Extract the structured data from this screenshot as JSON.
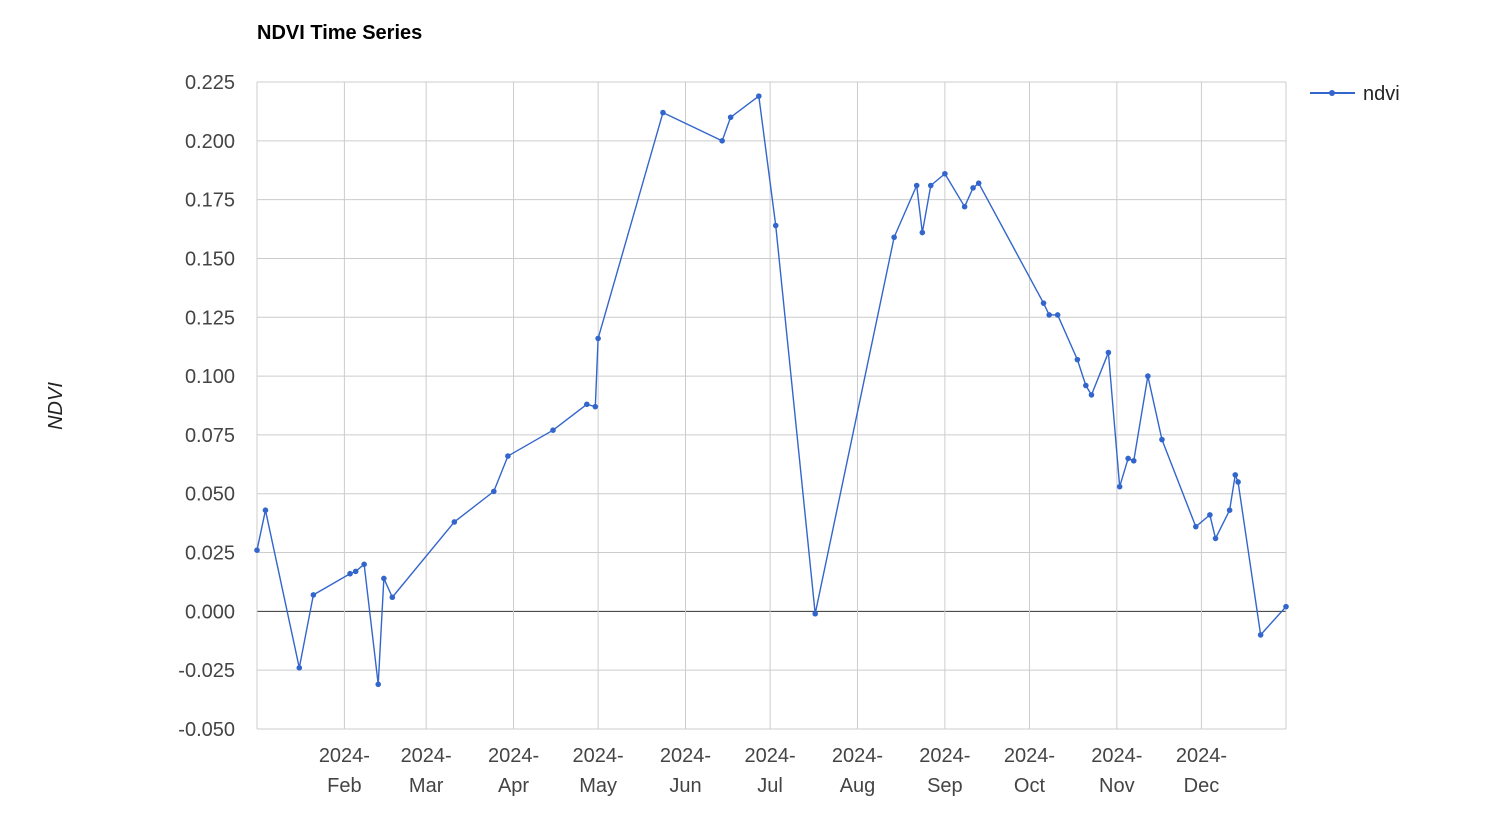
{
  "chart_data": {
    "type": "line",
    "title": "NDVI Time Series",
    "xlabel": "",
    "ylabel": "NDVI",
    "ylim": [
      -0.05,
      0.225
    ],
    "yticks": [
      "0.225",
      "0.200",
      "0.175",
      "0.150",
      "0.125",
      "0.100",
      "0.075",
      "0.050",
      "0.025",
      "0.000",
      "-0.025",
      "-0.050"
    ],
    "xticks": [
      {
        "date": "2024-02-01",
        "label1": "2024-",
        "label2": "Feb"
      },
      {
        "date": "2024-03-01",
        "label1": "2024-",
        "label2": "Mar"
      },
      {
        "date": "2024-04-01",
        "label1": "2024-",
        "label2": "Apr"
      },
      {
        "date": "2024-05-01",
        "label1": "2024-",
        "label2": "May"
      },
      {
        "date": "2024-06-01",
        "label1": "2024-",
        "label2": "Jun"
      },
      {
        "date": "2024-07-01",
        "label1": "2024-",
        "label2": "Jul"
      },
      {
        "date": "2024-08-01",
        "label1": "2024-",
        "label2": "Aug"
      },
      {
        "date": "2024-09-01",
        "label1": "2024-",
        "label2": "Sep"
      },
      {
        "date": "2024-10-01",
        "label1": "2024-",
        "label2": "Oct"
      },
      {
        "date": "2024-11-01",
        "label1": "2024-",
        "label2": "Nov"
      },
      {
        "date": "2024-12-01",
        "label1": "2024-",
        "label2": "Dec"
      }
    ],
    "xlim": [
      "2024-01-01",
      "2024-12-31"
    ],
    "grid": true,
    "legend_position": "top-right",
    "series": [
      {
        "name": "ndvi",
        "color": "#3366cc",
        "points": [
          {
            "x": "2024-01-01",
            "y": 0.026
          },
          {
            "x": "2024-01-04",
            "y": 0.043
          },
          {
            "x": "2024-01-16",
            "y": -0.024
          },
          {
            "x": "2024-01-21",
            "y": 0.007
          },
          {
            "x": "2024-02-03",
            "y": 0.016
          },
          {
            "x": "2024-02-05",
            "y": 0.017
          },
          {
            "x": "2024-02-08",
            "y": 0.02
          },
          {
            "x": "2024-02-13",
            "y": -0.031
          },
          {
            "x": "2024-02-15",
            "y": 0.014
          },
          {
            "x": "2024-02-18",
            "y": 0.006
          },
          {
            "x": "2024-03-11",
            "y": 0.038
          },
          {
            "x": "2024-03-25",
            "y": 0.051
          },
          {
            "x": "2024-03-30",
            "y": 0.066
          },
          {
            "x": "2024-04-15",
            "y": 0.077
          },
          {
            "x": "2024-04-27",
            "y": 0.088
          },
          {
            "x": "2024-04-30",
            "y": 0.087
          },
          {
            "x": "2024-05-01",
            "y": 0.116
          },
          {
            "x": "2024-05-24",
            "y": 0.212
          },
          {
            "x": "2024-06-14",
            "y": 0.2
          },
          {
            "x": "2024-06-17",
            "y": 0.21
          },
          {
            "x": "2024-06-27",
            "y": 0.219
          },
          {
            "x": "2024-07-03",
            "y": 0.164
          },
          {
            "x": "2024-07-17",
            "y": -0.001
          },
          {
            "x": "2024-08-14",
            "y": 0.159
          },
          {
            "x": "2024-08-22",
            "y": 0.181
          },
          {
            "x": "2024-08-24",
            "y": 0.161
          },
          {
            "x": "2024-08-27",
            "y": 0.181
          },
          {
            "x": "2024-09-01",
            "y": 0.186
          },
          {
            "x": "2024-09-08",
            "y": 0.172
          },
          {
            "x": "2024-09-11",
            "y": 0.18
          },
          {
            "x": "2024-09-13",
            "y": 0.182
          },
          {
            "x": "2024-10-06",
            "y": 0.131
          },
          {
            "x": "2024-10-08",
            "y": 0.126
          },
          {
            "x": "2024-10-11",
            "y": 0.126
          },
          {
            "x": "2024-10-18",
            "y": 0.107
          },
          {
            "x": "2024-10-21",
            "y": 0.096
          },
          {
            "x": "2024-10-23",
            "y": 0.092
          },
          {
            "x": "2024-10-29",
            "y": 0.11
          },
          {
            "x": "2024-11-02",
            "y": 0.053
          },
          {
            "x": "2024-11-05",
            "y": 0.065
          },
          {
            "x": "2024-11-07",
            "y": 0.064
          },
          {
            "x": "2024-11-12",
            "y": 0.1
          },
          {
            "x": "2024-11-17",
            "y": 0.073
          },
          {
            "x": "2024-11-29",
            "y": 0.036
          },
          {
            "x": "2024-12-04",
            "y": 0.041
          },
          {
            "x": "2024-12-06",
            "y": 0.031
          },
          {
            "x": "2024-12-11",
            "y": 0.043
          },
          {
            "x": "2024-12-13",
            "y": 0.058
          },
          {
            "x": "2024-12-14",
            "y": 0.055
          },
          {
            "x": "2024-12-22",
            "y": -0.01
          },
          {
            "x": "2024-12-31",
            "y": 0.002
          }
        ]
      }
    ]
  }
}
